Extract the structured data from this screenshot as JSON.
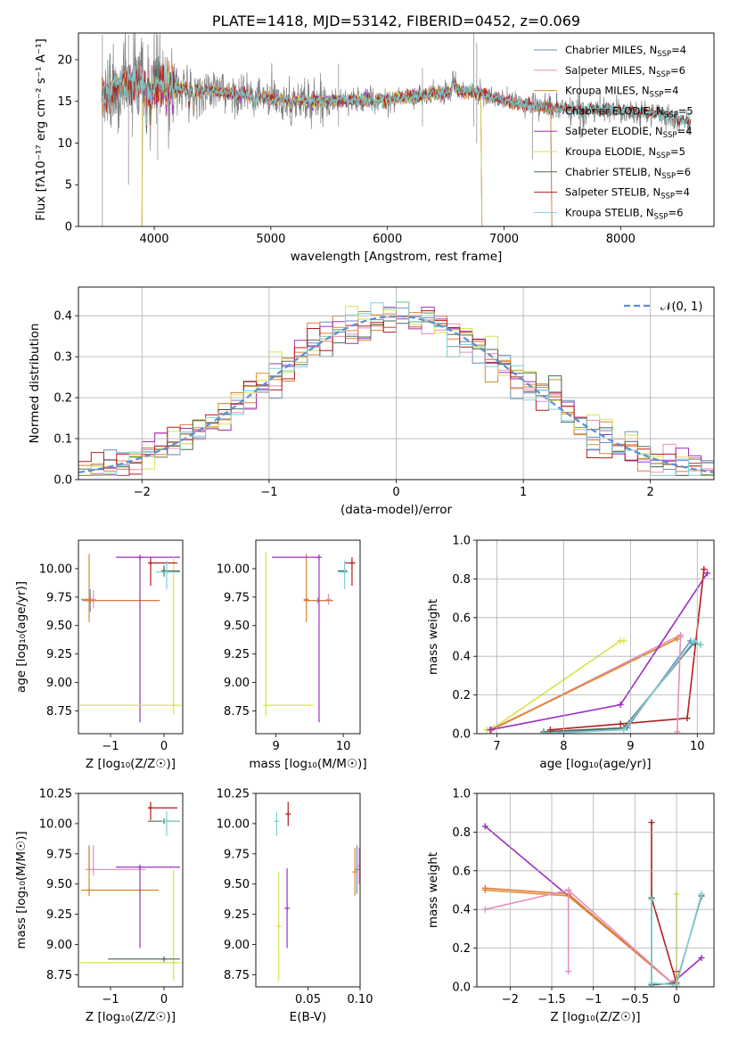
{
  "colors": {
    "Chabrier MILES": "#6c8ebf",
    "Salpeter MILES": "#e58fbf",
    "Kroupa MILES": "#d98b2b",
    "Chabrier ELODIE": "#e07b39",
    "Salpeter ELODIE": "#9b30c0",
    "Kroupa ELODIE": "#d7e34a",
    "Chabrier STELIB": "#4a6a58",
    "Salpeter STELIB": "#b51d1d",
    "Kroupa STELIB": "#7fd0d4",
    "gauss": "#5b8ed6",
    "grid": "#b0b0b0",
    "data_spectrum": "#808080"
  },
  "chart_data": [
    {
      "id": "spectrum",
      "type": "line",
      "title": "PLATE=1418, MJD=53142, FIBERID=0452, z=0.069",
      "xlabel": "wavelength [Angstrom, rest frame]",
      "ylabel": "Flux [fλ10⁻¹⁷ erg cm⁻² s⁻¹ A⁻¹]",
      "xlim": [
        3350,
        8800
      ],
      "ylim": [
        0,
        23.2
      ],
      "xticks": [
        4000,
        5000,
        6000,
        7000,
        8000
      ],
      "yticks": [
        0,
        5,
        10,
        15,
        20
      ],
      "grid": false,
      "legend_position": "top-right",
      "legend": [
        {
          "name": "Chabrier MILES, N",
          "sub": "SSP",
          "suffix": "=4"
        },
        {
          "name": "Salpeter MILES, N",
          "sub": "SSP",
          "suffix": "=6"
        },
        {
          "name": "Kroupa MILES, N",
          "sub": "SSP",
          "suffix": "=4"
        },
        {
          "name": "Chabrier ELODIE, N",
          "sub": "SSP",
          "suffix": "=5"
        },
        {
          "name": "Salpeter ELODIE, N",
          "sub": "SSP",
          "suffix": "=4"
        },
        {
          "name": "Kroupa ELODIE, N",
          "sub": "SSP",
          "suffix": "=5"
        },
        {
          "name": "Chabrier STELIB, N",
          "sub": "SSP",
          "suffix": "=6"
        },
        {
          "name": "Salpeter STELIB, N",
          "sub": "SSP",
          "suffix": "=4"
        },
        {
          "name": "Kroupa STELIB, N",
          "sub": "SSP",
          "suffix": "=6"
        }
      ],
      "continuum": [
        [
          3550,
          15.5
        ],
        [
          3650,
          16.5
        ],
        [
          3800,
          17.2
        ],
        [
          3950,
          16.8
        ],
        [
          4100,
          17.0
        ],
        [
          4300,
          16.4
        ],
        [
          4500,
          16.2
        ],
        [
          4800,
          15.7
        ],
        [
          5000,
          15.3
        ],
        [
          5300,
          15.0
        ],
        [
          5600,
          15.1
        ],
        [
          6000,
          15.3
        ],
        [
          6300,
          15.6
        ],
        [
          6600,
          16.3
        ],
        [
          6800,
          16.0
        ],
        [
          7000,
          15.0
        ],
        [
          7200,
          14.6
        ],
        [
          7400,
          14.2
        ],
        [
          7600,
          14.0
        ],
        [
          7800,
          14.1
        ],
        [
          8000,
          14.0
        ],
        [
          8200,
          13.7
        ],
        [
          8400,
          13.2
        ],
        [
          8600,
          12.5
        ]
      ],
      "model_ranges": {
        "Chabrier MILES": [
          3550,
          7400
        ],
        "Salpeter MILES": [
          3550,
          7400
        ],
        "Kroupa MILES": [
          3550,
          7400
        ],
        "Chabrier ELODIE": [
          3900,
          6800
        ],
        "Salpeter ELODIE": [
          3900,
          6800
        ],
        "Kroupa ELODIE": [
          3900,
          6800
        ],
        "Chabrier STELIB": [
          3550,
          8600
        ],
        "Salpeter STELIB": [
          3550,
          8600
        ],
        "Kroupa STELIB": [
          3550,
          8600
        ]
      }
    },
    {
      "id": "residuals",
      "type": "line",
      "xlabel": "(data-model)/error",
      "ylabel": "Normed distribution",
      "xlim": [
        -2.5,
        2.5
      ],
      "ylim": [
        0,
        0.47
      ],
      "xticks": [
        -2,
        -1,
        0,
        1,
        2
      ],
      "yticks": [
        0.0,
        0.1,
        0.2,
        0.3,
        0.4
      ],
      "grid": true,
      "legend_position": "top-right",
      "legend": [
        {
          "name": "𝒩(0, 1)"
        }
      ],
      "bin_width": 0.1,
      "note_series": "step histograms, one per model, colors as spectrum legend"
    },
    {
      "id": "Z_vs_age",
      "type": "scatter",
      "xlabel": "Z [log₁₀(Z/Z☉)]",
      "ylabel": "age  [log₁₀(age/yr)]",
      "xlim": [
        -1.6,
        0.35
      ],
      "ylim": [
        8.55,
        10.25
      ],
      "xticks": [
        -1,
        0
      ],
      "yticks": [
        8.75,
        9.0,
        9.25,
        9.5,
        9.75,
        10.0
      ],
      "grid": false,
      "points": [
        {
          "model": "Chabrier MILES",
          "x": -1.38,
          "y": 9.72,
          "xerr": [
            0.15,
            0.0
          ],
          "yerr": [
            0.1,
            0.1
          ]
        },
        {
          "model": "Salpeter MILES",
          "x": -1.32,
          "y": 9.73,
          "xerr": [
            0.15,
            0.02
          ],
          "yerr": [
            0.08,
            0.08
          ]
        },
        {
          "model": "Kroupa MILES",
          "x": -1.4,
          "y": 9.73,
          "xerr": [
            0.15,
            0.0
          ],
          "yerr": [
            0.2,
            0.4
          ]
        },
        {
          "model": "Chabrier ELODIE",
          "x": -1.38,
          "y": 9.72,
          "xerr": [
            0.1,
            1.3
          ],
          "yerr": [
            0.0,
            0.0
          ]
        },
        {
          "model": "Salpeter ELODIE",
          "x": -0.45,
          "y": 10.1,
          "xerr": [
            0.45,
            0.75
          ],
          "yerr": [
            1.45,
            0.0
          ]
        },
        {
          "model": "Kroupa ELODIE",
          "x": 0.18,
          "y": 8.8,
          "xerr": [
            1.75,
            0.14
          ],
          "yerr": [
            0.08,
            1.3
          ]
        },
        {
          "model": "Chabrier STELIB",
          "x": 0.0,
          "y": 9.98,
          "xerr": [
            0.05,
            0.3
          ],
          "yerr": [
            0.05,
            0.05
          ]
        },
        {
          "model": "Salpeter STELIB",
          "x": -0.25,
          "y": 10.05,
          "xerr": [
            0.05,
            0.5
          ],
          "yerr": [
            0.2,
            0.05
          ]
        },
        {
          "model": "Kroupa STELIB",
          "x": 0.05,
          "y": 9.97,
          "xerr": [
            0.2,
            0.25
          ],
          "yerr": [
            0.15,
            0.1
          ]
        }
      ]
    },
    {
      "id": "mass_vs_age",
      "type": "scatter",
      "xlabel": "mass [log₁₀(M/M☉)]",
      "ylabel": "",
      "xlim": [
        8.7,
        10.25
      ],
      "ylim": [
        8.55,
        10.25
      ],
      "xticks": [
        9,
        10
      ],
      "yticks": [
        8.75,
        9.0,
        9.25,
        9.5,
        9.75,
        10.0
      ],
      "grid": false,
      "points": [
        {
          "model": "Chabrier MILES",
          "x": 9.62,
          "y": 9.72,
          "xerr": [
            0.0,
            0.2
          ],
          "yerr": [
            0.0,
            0.0
          ]
        },
        {
          "model": "Salpeter MILES",
          "x": 9.78,
          "y": 9.73,
          "xerr": [
            0.0,
            0.0
          ],
          "yerr": [
            0.05,
            0.05
          ]
        },
        {
          "model": "Kroupa MILES",
          "x": 9.45,
          "y": 9.73,
          "xerr": [
            0.0,
            0.0
          ],
          "yerr": [
            0.2,
            0.4
          ]
        },
        {
          "model": "Chabrier ELODIE",
          "x": 9.45,
          "y": 9.72,
          "xerr": [
            0.0,
            0.4
          ],
          "yerr": [
            0.0,
            0.0
          ]
        },
        {
          "model": "Salpeter ELODIE",
          "x": 9.64,
          "y": 10.1,
          "xerr": [
            0.7,
            0.0
          ],
          "yerr": [
            1.45,
            0.0
          ]
        },
        {
          "model": "Kroupa ELODIE",
          "x": 8.85,
          "y": 8.8,
          "xerr": [
            0.0,
            0.7
          ],
          "yerr": [
            0.1,
            1.35
          ]
        },
        {
          "model": "Chabrier STELIB",
          "x": 10.02,
          "y": 9.98,
          "xerr": [
            0.1,
            0.0
          ],
          "yerr": [
            0.0,
            0.0
          ]
        },
        {
          "model": "Salpeter STELIB",
          "x": 10.13,
          "y": 10.05,
          "xerr": [
            0.1,
            0.05
          ],
          "yerr": [
            0.2,
            0.05
          ]
        },
        {
          "model": "Kroupa STELIB",
          "x": 10.02,
          "y": 9.97,
          "xerr": [
            0.1,
            0.05
          ],
          "yerr": [
            0.15,
            0.1
          ]
        }
      ]
    },
    {
      "id": "age_vs_massweight",
      "type": "line",
      "xlabel": "age  [log₁₀(age/yr)]",
      "ylabel": "mass weight",
      "xlim": [
        6.7,
        10.25
      ],
      "ylim": [
        0,
        1.0
      ],
      "xticks": [
        7,
        8,
        9,
        10
      ],
      "yticks": [
        0.0,
        0.2,
        0.4,
        0.6,
        0.8,
        1.0
      ],
      "grid": true,
      "series": [
        {
          "model": "Kroupa ELODIE",
          "x": [
            6.85,
            6.95,
            8.85,
            8.9
          ],
          "y": [
            0.02,
            0.03,
            0.48,
            0.48
          ]
        },
        {
          "model": "Chabrier ELODIE",
          "x": [
            6.9,
            9.7
          ],
          "y": [
            0.02,
            0.49
          ]
        },
        {
          "model": "Salpeter MILES",
          "x": [
            6.92,
            9.75
          ],
          "y": [
            0.02,
            0.51
          ]
        },
        {
          "model": "Kroupa MILES",
          "x": [
            6.92,
            9.7
          ],
          "y": [
            0.02,
            0.49
          ]
        },
        {
          "model": "Salpeter ELODIE",
          "x": [
            6.9,
            8.85,
            10.15
          ],
          "y": [
            0.02,
            0.15,
            0.83
          ]
        },
        {
          "model": "Salpeter STELIB",
          "x": [
            7.8,
            8.85,
            9.85,
            10.1
          ],
          "y": [
            0.02,
            0.05,
            0.08,
            0.85
          ]
        },
        {
          "model": "Chabrier MILES",
          "x": [
            7.7,
            8.95,
            9.9
          ],
          "y": [
            0.0,
            0.03,
            0.48
          ]
        },
        {
          "model": "Chabrier STELIB",
          "x": [
            7.7,
            8.9,
            9.95,
            10.05
          ],
          "y": [
            0.01,
            0.03,
            0.47,
            0.46
          ]
        },
        {
          "model": "Kroupa STELIB",
          "x": [
            7.7,
            8.9,
            9.95,
            10.05
          ],
          "y": [
            0.0,
            0.02,
            0.48,
            0.46
          ]
        },
        {
          "model": "Salpeter MILES",
          "x": [
            9.7,
            9.75
          ],
          "y": [
            0.01,
            0.5
          ]
        }
      ]
    },
    {
      "id": "Z_vs_mass",
      "type": "scatter",
      "xlabel": "Z [log₁₀(Z/Z☉)]",
      "ylabel": "mass [log₁₀(M/M☉)]",
      "xlim": [
        -1.6,
        0.35
      ],
      "ylim": [
        8.65,
        10.25
      ],
      "xticks": [
        -1,
        0
      ],
      "yticks": [
        8.75,
        9.0,
        9.25,
        9.5,
        9.75,
        10.0,
        10.25
      ],
      "grid": false,
      "points": [
        {
          "model": "Chabrier MILES",
          "x": -1.4,
          "y": 9.62,
          "xerr": [
            0.0,
            0.0
          ],
          "yerr": [
            0.0,
            0.2
          ]
        },
        {
          "model": "Salpeter MILES",
          "x": -1.32,
          "y": 9.62,
          "xerr": [
            0.15,
            0.98
          ],
          "yerr": [
            0.05,
            0.2
          ]
        },
        {
          "model": "Kroupa MILES",
          "x": -1.4,
          "y": 9.45,
          "xerr": [
            0.15,
            1.3
          ],
          "yerr": [
            0.05,
            0.35
          ]
        },
        {
          "model": "Salpeter ELODIE",
          "x": -0.45,
          "y": 9.64,
          "xerr": [
            0.45,
            0.75
          ],
          "yerr": [
            0.67,
            0.0
          ]
        },
        {
          "model": "Kroupa ELODIE",
          "x": 0.18,
          "y": 8.85,
          "xerr": [
            1.75,
            0.14
          ],
          "yerr": [
            0.15,
            0.77
          ]
        },
        {
          "model": "Chabrier STELIB",
          "x": 0.0,
          "y": 8.88,
          "xerr": [
            1.05,
            0.3
          ],
          "yerr": [
            0.0,
            0.0
          ]
        },
        {
          "model": "Chabrier STELIB",
          "x": 0.0,
          "y": 10.02,
          "xerr": [
            0.3,
            0.3
          ],
          "yerr": [
            0.0,
            0.0
          ]
        },
        {
          "model": "Salpeter STELIB",
          "x": -0.25,
          "y": 10.13,
          "xerr": [
            0.05,
            0.5
          ],
          "yerr": [
            0.1,
            0.05
          ]
        },
        {
          "model": "Kroupa STELIB",
          "x": 0.05,
          "y": 10.02,
          "xerr": [
            0.1,
            0.25
          ],
          "yerr": [
            0.12,
            0.08
          ]
        }
      ]
    },
    {
      "id": "EBV_vs_mass",
      "type": "scatter",
      "xlabel": "E(B-V)",
      "ylabel": "",
      "xlim": [
        0.0,
        0.1
      ],
      "ylim": [
        8.65,
        10.25
      ],
      "xticks": [
        0.05,
        0.1
      ],
      "xticklabels": [
        "0.05",
        "0.10"
      ],
      "yticks": [
        8.75,
        9.0,
        9.25,
        9.5,
        9.75,
        10.0,
        10.25
      ],
      "grid": false,
      "points": [
        {
          "model": "Kroupa STELIB",
          "x": 0.02,
          "y": 10.02,
          "xerr": [
            0.0,
            0.0
          ],
          "yerr": [
            0.12,
            0.08
          ]
        },
        {
          "model": "Salpeter STELIB",
          "x": 0.031,
          "y": 10.08,
          "xerr": [
            0.0,
            0.0
          ],
          "yerr": [
            0.1,
            0.1
          ]
        },
        {
          "model": "Kroupa ELODIE",
          "x": 0.022,
          "y": 9.15,
          "xerr": [
            0.0,
            0.0
          ],
          "yerr": [
            0.45,
            0.45
          ]
        },
        {
          "model": "Salpeter ELODIE",
          "x": 0.03,
          "y": 9.3,
          "xerr": [
            0.0,
            0.0
          ],
          "yerr": [
            0.33,
            0.33
          ]
        },
        {
          "model": "Chabrier MILES",
          "x": 0.097,
          "y": 9.62,
          "xerr": [
            0.0,
            0.0
          ],
          "yerr": [
            0.2,
            0.2
          ]
        },
        {
          "model": "Kroupa MILES",
          "x": 0.095,
          "y": 9.6,
          "xerr": [
            0.0,
            0.0
          ],
          "yerr": [
            0.2,
            0.2
          ]
        },
        {
          "model": "Salpeter MILES",
          "x": 0.099,
          "y": 9.65,
          "xerr": [
            0.0,
            0.0
          ],
          "yerr": [
            0.15,
            0.15
          ]
        }
      ]
    },
    {
      "id": "Z_vs_massweight",
      "type": "line",
      "xlabel": "Z [log₁₀(Z/Z☉)]",
      "ylabel": "mass weight",
      "xlim": [
        -2.4,
        0.45
      ],
      "ylim": [
        0,
        1.0
      ],
      "xticks": [
        -2.0,
        -1.5,
        -1.0,
        -0.5,
        0.0
      ],
      "yticks": [
        0.0,
        0.2,
        0.4,
        0.6,
        0.8,
        1.0
      ],
      "grid": true,
      "series": [
        {
          "model": "Salpeter ELODIE",
          "x": [
            -2.3,
            -0.05,
            0.3
          ],
          "y": [
            0.83,
            0.02,
            0.15
          ]
        },
        {
          "model": "Kroupa MILES",
          "x": [
            -2.3,
            -1.3,
            -0.05
          ],
          "y": [
            0.5,
            0.47,
            0.02
          ]
        },
        {
          "model": "Chabrier ELODIE",
          "x": [
            -2.3,
            -1.3,
            -0.05
          ],
          "y": [
            0.51,
            0.48,
            0.02
          ]
        },
        {
          "model": "Salpeter MILES",
          "x": [
            -2.3,
            -1.3,
            -1.3,
            -1.3,
            -0.05
          ],
          "y": [
            0.4,
            0.5,
            0.08,
            0.5,
            0.02
          ]
        },
        {
          "model": "Salpeter STELIB",
          "x": [
            -0.3,
            -0.3,
            0.0,
            0.0
          ],
          "y": [
            0.85,
            0.46,
            0.02,
            0.08
          ]
        },
        {
          "model": "Chabrier STELIB",
          "x": [
            -0.3,
            -0.3,
            0.0,
            0.3
          ],
          "y": [
            0.46,
            0.01,
            0.02,
            0.47
          ]
        },
        {
          "model": "Kroupa STELIB",
          "x": [
            -0.3,
            -0.3,
            0.0,
            0.3
          ],
          "y": [
            0.45,
            0.02,
            0.01,
            0.48
          ]
        },
        {
          "model": "Kroupa ELODIE",
          "x": [
            0.0,
            0.0
          ],
          "y": [
            0.0,
            0.48
          ]
        }
      ]
    }
  ]
}
